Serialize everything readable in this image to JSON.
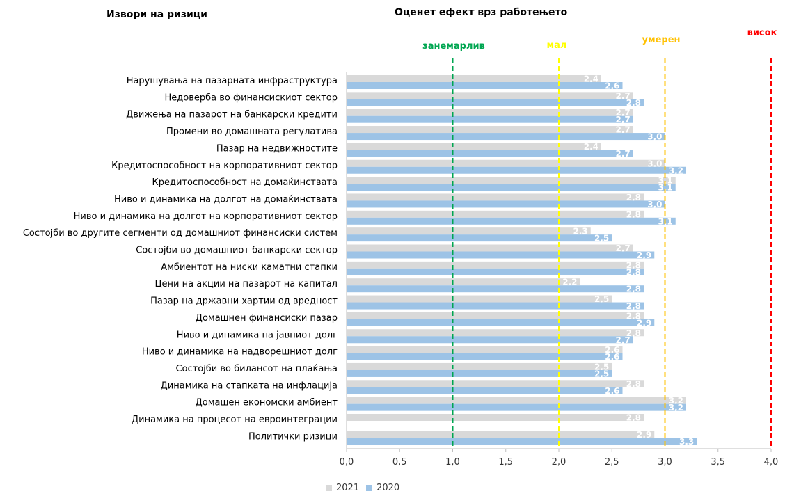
{
  "header": {
    "left_title": "Извори на ризици",
    "center_title": "Оценет ефект врз работењето"
  },
  "chart_data": {
    "type": "bar",
    "orientation": "horizontal",
    "title": "Оценет ефект врз работењето",
    "xlim": [
      0,
      4
    ],
    "xticks": [
      "0,0",
      "0,5",
      "1,0",
      "1,5",
      "2,0",
      "2,5",
      "3,0",
      "3,5",
      "4,0"
    ],
    "xtick_values": [
      0,
      0.5,
      1,
      1.5,
      2,
      2.5,
      3,
      3.5,
      4
    ],
    "categories": [
      "Нарушувања на пазарната инфраструктура",
      "Недоверба во финансискиот сектор",
      "Движења на пазарот на банкарски кредити",
      "Промени во домашната регулатива",
      "Пазар на недвижностите",
      "Кредитоспособност на корпоративниот сектор",
      "Кредитоспособност на  домаќинствата",
      "Ниво и динамика на долгот на домаќинствата",
      "Ниво и динамика на долгот на корпоративниот сектор",
      "Состојби во другите сегменти од домашниот финансиски систем",
      "Состојби во домашниот банкарски сектор",
      "Амбиентот на ниски каматни стапки",
      "Цени на акции на пазарот на капитал",
      "Пазар на државни хартии од вредност",
      "Домашнен финансиски пазар",
      "Ниво и динамика на јавниот долг",
      "Ниво и динамика на надворешниот долг",
      "Состојби во билансот на плаќања",
      "Динамика на стапката на инфлација",
      "Домашен економски амбиент",
      "Динамика на процесот на евроинтеграции",
      "Политички ризици"
    ],
    "series": [
      {
        "name": "2021",
        "color": "#d9d9d9",
        "values": [
          2.4,
          2.7,
          2.7,
          2.7,
          2.4,
          3.0,
          3.1,
          2.8,
          2.8,
          2.3,
          2.7,
          2.8,
          2.2,
          2.5,
          2.8,
          2.8,
          2.6,
          2.5,
          2.8,
          3.2,
          2.8,
          2.9
        ],
        "labels": [
          "2,4",
          "2,7",
          "2,7",
          "2,7",
          "2,4",
          "3,0",
          "3,1",
          "2,8",
          "2,8",
          "2,3",
          "2,7",
          "2,8",
          "2,2",
          "2,5",
          "2,8",
          "2,8",
          "2,6",
          "2,5",
          "2,8",
          "3,2",
          "2,8",
          "2,9"
        ]
      },
      {
        "name": "2020",
        "color": "#9dc3e6",
        "values": [
          2.6,
          2.8,
          2.7,
          3.0,
          2.7,
          3.2,
          3.1,
          3.0,
          3.1,
          2.5,
          2.9,
          2.8,
          2.8,
          2.8,
          2.9,
          2.7,
          2.6,
          2.5,
          2.6,
          3.2,
          null,
          3.3
        ],
        "labels": [
          "2,6",
          "2,8",
          "2,7",
          "3,0",
          "2,7",
          "3,2",
          "3,1",
          "3,0",
          "3,1",
          "2,5",
          "2,9",
          "2,8",
          "2,8",
          "2,8",
          "2,9",
          "2,7",
          "2,6",
          "2,5",
          "2,6",
          "3,2",
          "",
          "3,3"
        ]
      }
    ],
    "thresholds": [
      {
        "label": "занемарлив",
        "value": 1.0,
        "color": "#00a651"
      },
      {
        "label": "мал",
        "value": 2.0,
        "color": "#ffff00"
      },
      {
        "label": "умерен",
        "value": 3.0,
        "color": "#ffc000"
      },
      {
        "label": "висок",
        "value": 4.0,
        "color": "#ff0000"
      }
    ],
    "legend": {
      "placement": "bottom",
      "items": [
        "2021",
        "2020"
      ]
    }
  }
}
